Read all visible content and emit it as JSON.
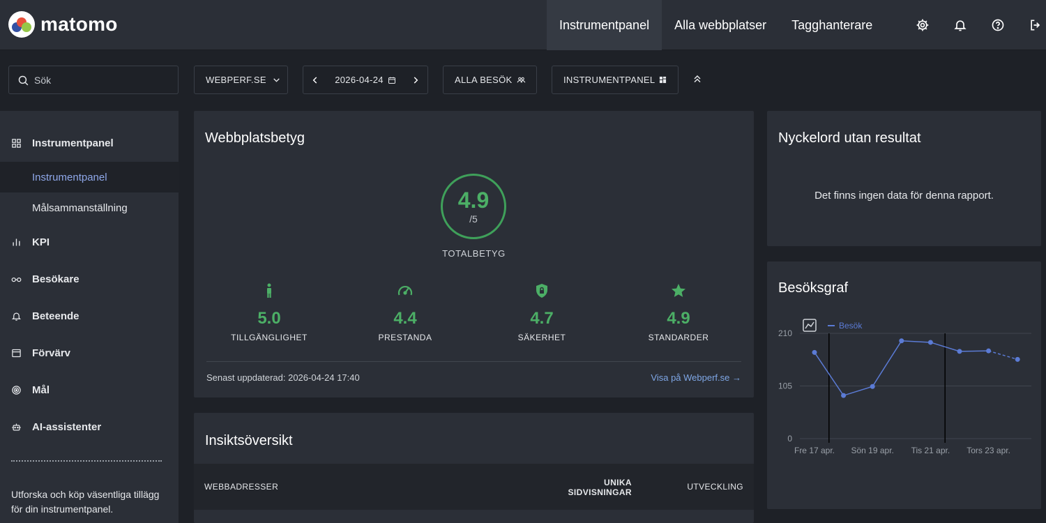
{
  "brand": {
    "name": "matomo"
  },
  "topnav": [
    {
      "label": "Instrumentpanel",
      "active": true
    },
    {
      "label": "Alla webbplatser",
      "active": false
    },
    {
      "label": "Tagghanterare",
      "active": false
    }
  ],
  "topicons": [
    "gear-icon",
    "bell-icon",
    "help-icon",
    "logout-icon"
  ],
  "search": {
    "placeholder": "Sök"
  },
  "toolbar": {
    "site": "WEBPERF.SE",
    "date": "2026-04-24",
    "segment": "ALLA BESÖK",
    "dashboard": "INSTRUMENTPANEL"
  },
  "sidebar": {
    "sections": [
      {
        "label": "Instrumentpanel",
        "icon": "dashboard-grid-icon"
      },
      {
        "label": "KPI",
        "icon": "bar-chart-icon"
      },
      {
        "label": "Besökare",
        "icon": "glasses-icon"
      },
      {
        "label": "Beteende",
        "icon": "bell-icon"
      },
      {
        "label": "Förvärv",
        "icon": "window-icon"
      },
      {
        "label": "Mål",
        "icon": "target-icon"
      },
      {
        "label": "AI-assistenter",
        "icon": "robot-icon"
      }
    ],
    "subitems": [
      {
        "label": "Instrumentpanel",
        "active": true
      },
      {
        "label": "Målsammanställning",
        "active": false
      }
    ],
    "promo": "Utforska och köp väsentliga tillägg för din instrumentpanel."
  },
  "rating": {
    "title": "Webbplatsbetyg",
    "total_score": "4.9",
    "total_max": "/5",
    "total_label": "TOTALBETYG",
    "metrics": [
      {
        "icon": "accessibility-person-icon",
        "value": "5.0",
        "label": "TILLGÄNGLIGHET"
      },
      {
        "icon": "speedometer-icon",
        "value": "4.4",
        "label": "PRESTANDA"
      },
      {
        "icon": "shield-lock-icon",
        "value": "4.7",
        "label": "SÄKERHET"
      },
      {
        "icon": "star-icon",
        "value": "4.9",
        "label": "STANDARDER"
      }
    ],
    "updated": "Senast uppdaterad: 2026-04-24 17:40",
    "link": "Visa på Webperf.se →",
    "color": "#4caf66"
  },
  "insights": {
    "title": "Insiktsöversikt",
    "columns": [
      "WEBBADRESSER",
      "UNIKA SIDVISNINGAR",
      "UTVECKLING"
    ]
  },
  "keywords": {
    "title": "Nyckelord utan resultat",
    "empty": "Det finns ingen data för denna rapport."
  },
  "visits_graph": {
    "title": "Besöksgraf",
    "chart_data": {
      "type": "line",
      "x": [
        "2026-04-17",
        "2026-04-18",
        "2026-04-19",
        "2026-04-20",
        "2026-04-21",
        "2026-04-22",
        "2026-04-23",
        "2026-04-24"
      ],
      "series": [
        {
          "name": "Besök",
          "values": [
            172,
            86,
            104,
            195,
            192,
            174,
            175,
            158
          ],
          "color": "#5b7bd5",
          "last_segment_dashed": true
        }
      ],
      "yticks": [
        "0",
        "105",
        "210"
      ],
      "ylim": [
        0,
        210
      ],
      "xtick_labels": [
        "Fre 17 apr.",
        "Sön 19 apr.",
        "Tis 21 apr.",
        "Tors 23 apr."
      ],
      "xtick_indices": [
        0,
        2,
        4,
        6
      ],
      "vertical_markers": [
        0.5,
        4.5
      ],
      "grid": true,
      "legend": "top-left"
    }
  }
}
